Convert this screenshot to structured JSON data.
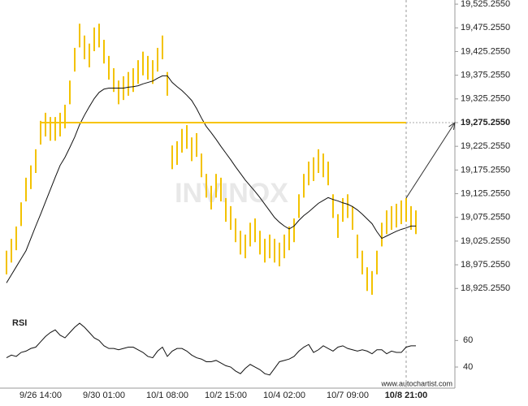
{
  "chart_data": [
    {
      "type": "ohlc",
      "categories": [
        null,
        null,
        null,
        null,
        null,
        null,
        null,
        "9/26 14:00",
        null,
        null,
        null,
        null,
        null,
        null,
        null,
        null,
        null,
        null,
        null,
        null,
        "9/30 01:00",
        null,
        null,
        null,
        null,
        null,
        null,
        null,
        null,
        null,
        null,
        null,
        null,
        "10/1 08:00",
        null,
        null,
        null,
        null,
        null,
        null,
        null,
        null,
        null,
        null,
        null,
        "10/2 15:00",
        null,
        null,
        null,
        null,
        null,
        null,
        null,
        null,
        null,
        null,
        null,
        "10/4 02:00",
        null,
        null,
        null,
        null,
        null,
        null,
        null,
        null,
        null,
        null,
        null,
        null,
        "10/7 09:00",
        null,
        null,
        null,
        null,
        null,
        null,
        null,
        null,
        null,
        null,
        null,
        "10/8 21:00",
        null,
        null
      ],
      "high": [
        19005,
        19030,
        19056,
        19107,
        19159,
        19185,
        19219,
        19279,
        19296,
        19287,
        19287,
        19296,
        19313,
        19364,
        19433,
        19484,
        19459,
        19442,
        19476,
        19484,
        19450,
        19416,
        19390,
        19364,
        19373,
        19382,
        19390,
        19407,
        19425,
        19416,
        19407,
        19433,
        19459,
        19382,
        19227,
        19236,
        19262,
        19270,
        19244,
        19253,
        19210,
        19167,
        19142,
        19167,
        19159,
        19116,
        19099,
        19073,
        19047,
        19039,
        19064,
        19073,
        19047,
        19030,
        19039,
        19030,
        19022,
        19039,
        19056,
        19073,
        19124,
        19167,
        19193,
        19202,
        19219,
        19210,
        19193,
        19124,
        19082,
        19116,
        19124,
        19099,
        19039,
        19005,
        18970,
        18962,
        19005,
        19064,
        19090,
        19099,
        19104,
        19111,
        19116,
        19099,
        19090
      ],
      "low": [
        18955,
        18980,
        19006,
        19057,
        19109,
        19135,
        19169,
        19229,
        19246,
        19237,
        19237,
        19246,
        19263,
        19314,
        19383,
        19434,
        19409,
        19392,
        19426,
        19434,
        19400,
        19366,
        19340,
        19314,
        19323,
        19332,
        19340,
        19357,
        19375,
        19366,
        19357,
        19383,
        19409,
        19332,
        19177,
        19186,
        19212,
        19220,
        19194,
        19203,
        19160,
        19117,
        19092,
        19117,
        19109,
        19066,
        19049,
        19023,
        18997,
        18989,
        19014,
        19023,
        18997,
        18980,
        18989,
        18980,
        18972,
        18989,
        19006,
        19023,
        19074,
        19117,
        19143,
        19152,
        19169,
        19160,
        19143,
        19074,
        19032,
        19066,
        19074,
        19049,
        18989,
        18955,
        18920,
        18912,
        18955,
        19014,
        19040,
        19049,
        19054,
        19061,
        19066,
        19049,
        19040
      ],
      "moving_average": [
        18937,
        18954,
        18971,
        18988,
        19005,
        19031,
        19057,
        19082,
        19108,
        19134,
        19160,
        19185,
        19202,
        19223,
        19245,
        19271,
        19291,
        19309,
        19326,
        19339,
        19346,
        19348,
        19348,
        19348,
        19348,
        19350,
        19351,
        19353,
        19357,
        19360,
        19363,
        19369,
        19374,
        19374,
        19360,
        19351,
        19343,
        19333,
        19322,
        19305,
        19285,
        19267,
        19254,
        19240,
        19225,
        19211,
        19197,
        19182,
        19168,
        19154,
        19142,
        19130,
        19117,
        19103,
        19089,
        19075,
        19065,
        19057,
        19051,
        19057,
        19069,
        19079,
        19087,
        19096,
        19105,
        19111,
        19117,
        19113,
        19110,
        19106,
        19103,
        19098,
        19091,
        19082,
        19072,
        19062,
        19045,
        19031,
        19036,
        19041,
        19046,
        19050,
        19053,
        19057,
        19057
      ],
      "color": "#f3c200",
      "ma_color": "#111111",
      "level": 19275.255,
      "level_color": "#f7c400",
      "ylim": [
        18900,
        19534
      ],
      "yticks": [
        {
          "value": 19525.255,
          "label": "19,525.2550"
        },
        {
          "value": 19475.255,
          "label": "19,475.2550"
        },
        {
          "value": 19425.255,
          "label": "19,425.2550"
        },
        {
          "value": 19375.255,
          "label": "19,375.2550"
        },
        {
          "value": 19325.255,
          "label": "19,325.2550"
        },
        {
          "value": 19275.255,
          "label": "19,275.2550"
        },
        {
          "value": 19225.255,
          "label": "19,225.2550"
        },
        {
          "value": 19175.255,
          "label": "19,175.2550"
        },
        {
          "value": 19125.255,
          "label": "19,125.2550"
        },
        {
          "value": 19075.255,
          "label": "19,075.2550"
        },
        {
          "value": 19025.255,
          "label": "19,025.2550"
        },
        {
          "value": 18975.255,
          "label": "18,975.2550"
        },
        {
          "value": 18925.255,
          "label": "18,925.2550"
        }
      ],
      "watermark": "INVINOX",
      "source": "www.autochartist.com"
    },
    {
      "type": "line",
      "title": "RSI",
      "values": [
        47,
        49,
        48,
        51,
        52,
        54,
        55,
        59,
        63,
        66,
        68,
        64,
        62,
        66,
        70,
        73,
        70,
        66,
        62,
        60,
        56,
        54,
        54,
        53,
        54,
        55,
        55,
        53,
        51,
        48,
        47,
        52,
        55,
        48,
        52,
        54,
        54,
        52,
        49,
        47,
        46,
        44,
        44,
        45,
        43,
        41,
        40,
        37,
        35,
        39,
        42,
        40,
        38,
        35,
        34,
        39,
        44,
        45,
        46,
        48,
        52,
        55,
        57,
        51,
        53,
        56,
        54,
        52,
        55,
        56,
        54,
        53,
        52,
        53,
        52,
        50,
        53,
        53,
        50,
        52,
        51,
        51,
        55,
        56,
        56
      ],
      "color": "#111111",
      "ylim": [
        29,
        81
      ],
      "yticks": [
        60,
        40
      ]
    }
  ]
}
